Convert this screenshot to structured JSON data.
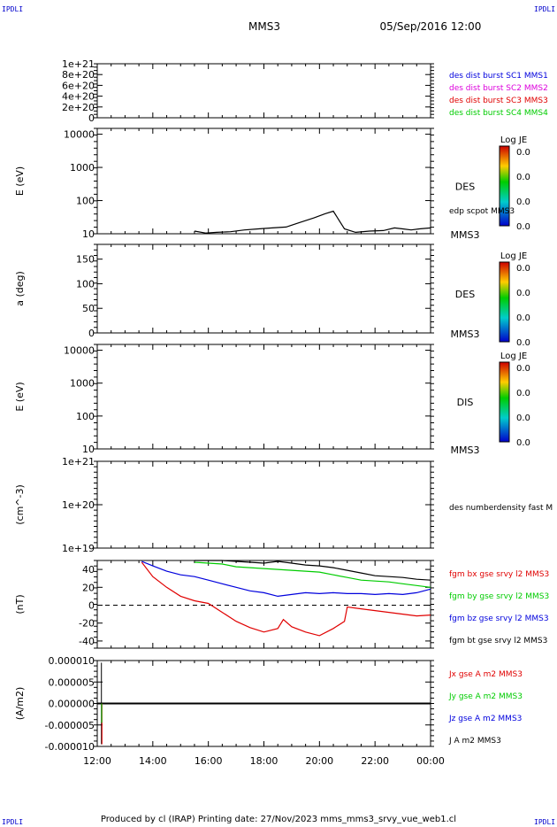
{
  "header": {
    "corner_tl": "IPDLI",
    "corner_tr": "IPDLI",
    "corner_bl": "IPDLI",
    "corner_br": "IPDLI",
    "spacecraft": "MMS3",
    "datetime": "05/Sep/2016 12:00"
  },
  "footer": {
    "text": "Produced by cl (IRAP)   Printing date: 27/Nov/2023   mms_mms3_srvy_vue_web1.cl"
  },
  "colors": {
    "black": "#000000",
    "red": "#e00000",
    "green": "#00cc00",
    "blue": "#0000dd",
    "magenta": "#dd00dd"
  },
  "chart_data": [
    {
      "type": "line",
      "panel": "dist-burst",
      "yticks": [
        "1e+21",
        "8e+20",
        "6e+20",
        "4e+20",
        "2e+20",
        "0"
      ],
      "ylim": [
        0,
        1e+21
      ],
      "zero_line": "dashed",
      "labels": [
        {
          "text": "des dist burst SC1 MMS1",
          "color": "#0000dd"
        },
        {
          "text": "des dist burst SC2 MMS2",
          "color": "#dd00dd"
        },
        {
          "text": "des dist burst SC3 MMS3",
          "color": "#e00000"
        },
        {
          "text": "des dist burst SC4 MMS4",
          "color": "#00cc00"
        }
      ]
    },
    {
      "type": "line",
      "panel": "des-energy",
      "ylabel": "E (eV)",
      "yscale": "log",
      "ylim": [
        10,
        15000
      ],
      "yticks": [
        "10000",
        "1000",
        "100",
        "10"
      ],
      "side_label": "DES",
      "spacecraft": "MMS3",
      "series_label": "edp scpot MMS3",
      "colorbar": {
        "title": "Log JE",
        "ticks": [
          "0.0",
          "0.0",
          "0.0",
          "0.0"
        ]
      },
      "series": [
        {
          "name": "edp scpot MMS3",
          "color": "#000000",
          "x": [
            15.5,
            15.9,
            16.3,
            16.8,
            17.3,
            17.8,
            18.3,
            18.8,
            19.3,
            19.8,
            20.2,
            20.5,
            20.9,
            21.3,
            21.8,
            22.3,
            22.7,
            23.0,
            23.3,
            23.6,
            24.0
          ],
          "y": [
            12,
            10.5,
            11,
            11.5,
            13,
            14,
            15,
            16,
            22,
            30,
            40,
            48,
            14,
            11,
            12,
            12.5,
            15,
            14,
            13,
            14,
            15
          ]
        }
      ]
    },
    {
      "type": "heatmap",
      "panel": "des-pitch",
      "ylabel": "a (deg)",
      "ylim": [
        0,
        180
      ],
      "yticks": [
        "150",
        "100",
        "50",
        "0"
      ],
      "side_label": "DES",
      "spacecraft": "MMS3",
      "colorbar": {
        "title": "Log JE",
        "ticks": [
          "0.0",
          "0.0",
          "0.0",
          "0.0"
        ]
      }
    },
    {
      "type": "heatmap",
      "panel": "dis-energy",
      "ylabel": "E (eV)",
      "yscale": "log",
      "ylim": [
        10,
        15000
      ],
      "yticks": [
        "10000",
        "1000",
        "100",
        "10"
      ],
      "side_label": "DIS",
      "spacecraft": "MMS3",
      "colorbar": {
        "title": "Log JE",
        "ticks": [
          "0.0",
          "0.0",
          "0.0",
          "0.0"
        ]
      }
    },
    {
      "type": "line",
      "panel": "density",
      "ylabel": "(cm^-3)",
      "yscale": "log",
      "ylim": [
        1e+19,
        1e+21
      ],
      "yticks": [
        "1e+21",
        "1e+20",
        "1e+19"
      ],
      "series_label": "des numberdensity fast M"
    },
    {
      "type": "line",
      "panel": "fgm",
      "ylabel": "(nT)",
      "ylim": [
        -48,
        50
      ],
      "yticks": [
        "40",
        "20",
        "0",
        "-20",
        "-40"
      ],
      "zero_line": "dashed",
      "series": [
        {
          "name": "fgm bx gse srvy l2 MMS3",
          "color": "#e00000",
          "x": [
            13.6,
            14.0,
            14.5,
            15.0,
            15.5,
            16.0,
            16.5,
            17.0,
            17.5,
            18.0,
            18.5,
            18.7,
            19.0,
            19.5,
            20.0,
            20.5,
            20.9,
            21.0,
            21.5,
            22.0,
            22.5,
            23.0,
            23.5,
            24.0
          ],
          "y": [
            48,
            32,
            20,
            10,
            5,
            2,
            -8,
            -18,
            -25,
            -30,
            -26,
            -16,
            -24,
            -30,
            -34,
            -26,
            -18,
            -2,
            -4,
            -6,
            -8,
            -10,
            -12,
            -11
          ]
        },
        {
          "name": "fgm by gse srvy l2 MMS3",
          "color": "#00cc00",
          "x": [
            15.5,
            16.0,
            16.5,
            17.0,
            17.5,
            18.0,
            18.5,
            19.0,
            19.5,
            20.0,
            20.5,
            21.0,
            21.5,
            22.0,
            22.5,
            23.0,
            23.5,
            24.0
          ],
          "y": [
            48,
            47,
            46,
            43,
            42,
            41,
            40,
            39,
            38,
            37,
            34,
            31,
            28,
            27,
            26,
            24,
            22,
            20
          ]
        },
        {
          "name": "fgm bz gse srvy l2 MMS3",
          "color": "#0000dd",
          "x": [
            13.6,
            14.0,
            14.5,
            15.0,
            15.5,
            16.0,
            16.5,
            17.0,
            17.5,
            18.0,
            18.5,
            19.0,
            19.5,
            20.0,
            20.5,
            21.0,
            21.5,
            22.0,
            22.5,
            23.0,
            23.5,
            24.0
          ],
          "y": [
            49,
            44,
            38,
            34,
            32,
            28,
            24,
            20,
            16,
            14,
            10,
            12,
            14,
            13,
            14,
            13,
            13,
            12,
            13,
            12,
            14,
            18
          ]
        },
        {
          "name": "fgm bt gse srvy l2 MMS3",
          "color": "#000000",
          "x": [
            15.5,
            16.0,
            16.5,
            17.0,
            17.5,
            18.0,
            18.5,
            19.0,
            19.5,
            20.0,
            20.5,
            21.0,
            21.5,
            22.0,
            22.5,
            23.0,
            23.5,
            24.0
          ],
          "y": [
            50,
            50,
            50,
            49,
            48,
            47,
            49,
            47,
            45,
            44,
            42,
            39,
            36,
            33,
            32,
            31,
            29,
            28
          ]
        }
      ]
    },
    {
      "type": "line",
      "panel": "current",
      "ylabel": "(A/m2)",
      "ylim": [
        -1e-05,
        1e-05
      ],
      "yticks": [
        "0.000010",
        "0.000005",
        "0.000000",
        "-0.000005",
        "-0.000010"
      ],
      "series": [
        {
          "name": "Jx gse A m2 MMS3",
          "color": "#e00000"
        },
        {
          "name": "Jy gse A m2 MMS3",
          "color": "#00cc00"
        },
        {
          "name": "Jz gse A m2 MMS3",
          "color": "#0000dd"
        },
        {
          "name": "J A m2 MMS3",
          "color": "#000000"
        }
      ]
    }
  ],
  "time_axis": {
    "xlim": [
      12,
      24
    ],
    "ticks": [
      "12:00",
      "14:00",
      "16:00",
      "18:00",
      "20:00",
      "22:00",
      "00:00"
    ],
    "tick_values": [
      12,
      14,
      16,
      18,
      20,
      22,
      24
    ]
  }
}
